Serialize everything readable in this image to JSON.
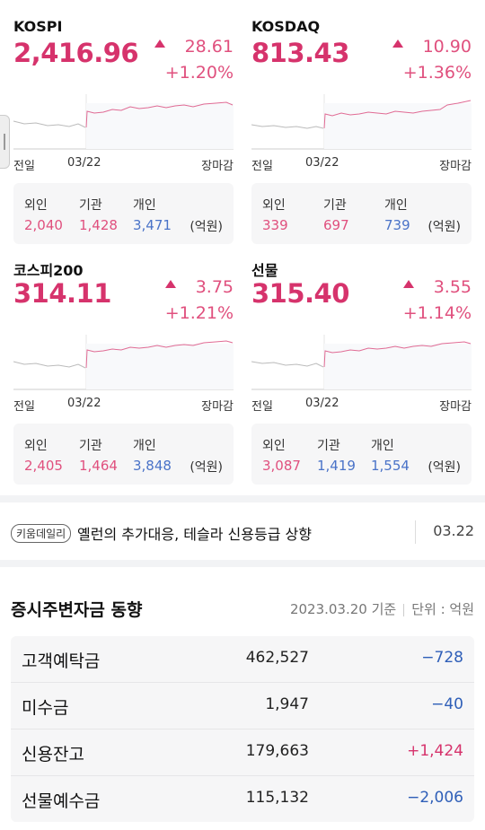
{
  "markets": [
    {
      "name": "KOSPI",
      "value": "2,416.96",
      "change": "28.61",
      "pct": "+1.20%",
      "axis": {
        "left": "전일",
        "mid": "03/22",
        "right": "장마감"
      },
      "flow": {
        "foreign_label": "외인",
        "foreign": "2,040",
        "inst_label": "기관",
        "inst": "1,428",
        "indiv_label": "개인",
        "indiv": "3,471",
        "unit": "(억원)"
      }
    },
    {
      "name": "KOSDAQ",
      "value": "813.43",
      "change": "10.90",
      "pct": "+1.36%",
      "axis": {
        "left": "전일",
        "mid": "03/22",
        "right": "장마감"
      },
      "flow": {
        "foreign_label": "외인",
        "foreign": "339",
        "inst_label": "기관",
        "inst": "697",
        "indiv_label": "개인",
        "indiv": "739",
        "unit": "(억원)"
      }
    },
    {
      "name": "코스피200",
      "value": "314.11",
      "change": "3.75",
      "pct": "+1.21%",
      "axis": {
        "left": "전일",
        "mid": "03/22",
        "right": "장마감"
      },
      "flow": {
        "foreign_label": "외인",
        "foreign": "2,405",
        "inst_label": "기관",
        "inst": "1,464",
        "indiv_label": "개인",
        "indiv": "3,848",
        "unit": "(억원)"
      }
    },
    {
      "name": "선물",
      "value": "315.40",
      "change": "3.55",
      "pct": "+1.14%",
      "axis": {
        "left": "전일",
        "mid": "03/22",
        "right": "장마감"
      },
      "flow": {
        "foreign_label": "외인",
        "foreign": "3,087",
        "inst_label": "기관",
        "inst": "1,419",
        "indiv_label": "개인",
        "indiv": "1,554",
        "unit": "(억원)"
      }
    }
  ],
  "news": {
    "badge": "키움데일리",
    "headline": "옐런의 추가대응, 테슬라 신용등급 상향",
    "date": "03.22"
  },
  "deposit": {
    "title": "증시주변자금 동향",
    "basis": "2023.03.20 기준",
    "unit": "단위 : 억원",
    "rows": [
      {
        "label": "고객예탁금",
        "amount": "462,527",
        "change": "−728"
      },
      {
        "label": "미수금",
        "amount": "1,947",
        "change": "−40"
      },
      {
        "label": "신용잔고",
        "amount": "179,663",
        "change": "+1,424"
      },
      {
        "label": "선물예수금",
        "amount": "115,132",
        "change": "−2,006"
      }
    ]
  },
  "colors": {
    "up": "#d6336c",
    "down": "#2f5fb8"
  }
}
